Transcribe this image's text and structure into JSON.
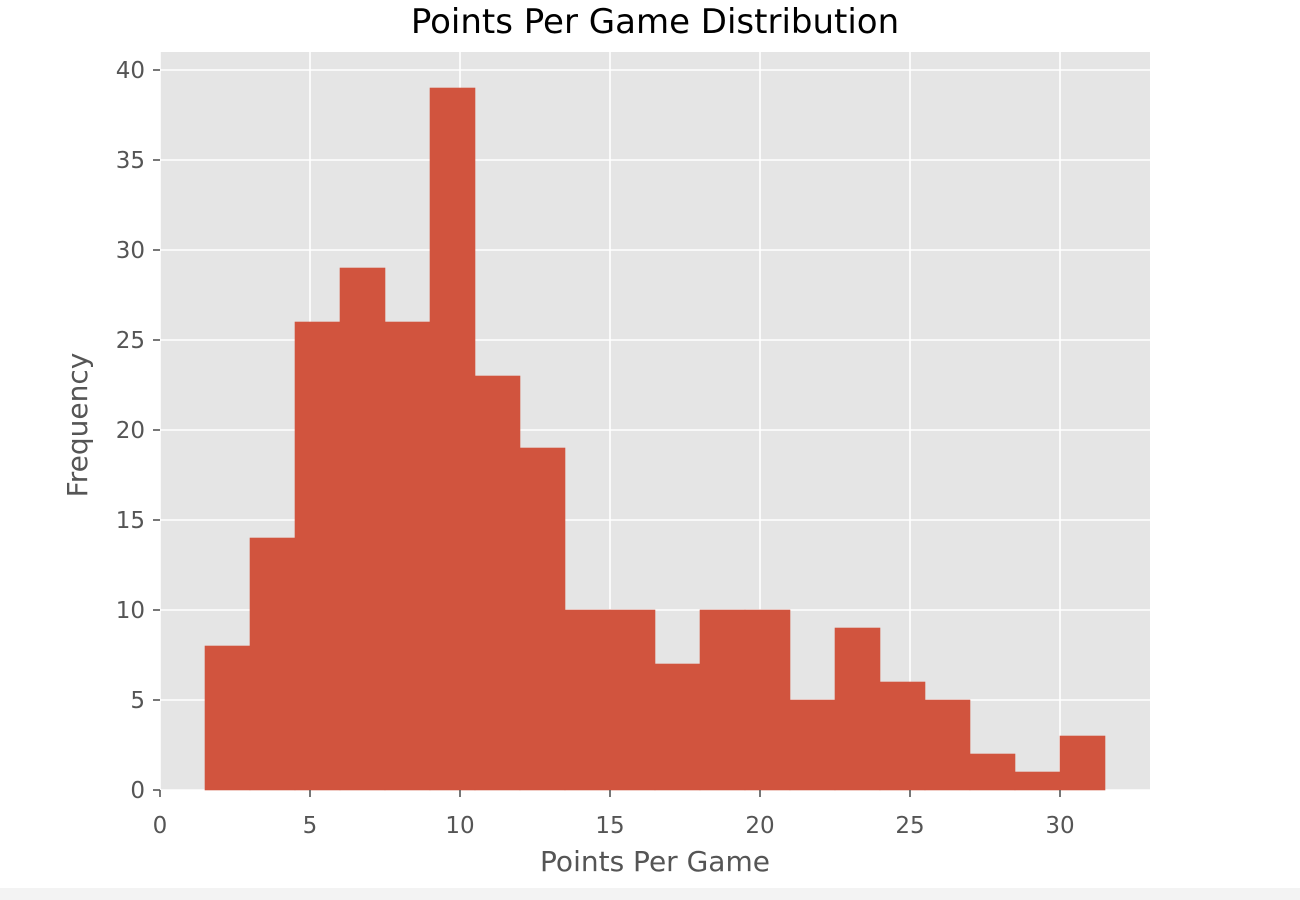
{
  "chart_data": {
    "type": "bar",
    "title": "Points Per Game Distribution",
    "xlabel": "Points Per Game",
    "ylabel": "Frequency",
    "xlim": [
      0,
      33
    ],
    "ylim": [
      0,
      41
    ],
    "grid": true,
    "bar_color": "#d1543e",
    "background_color": "#e5e5e5",
    "grid_color": "#ffffff",
    "x_ticks": [
      0,
      5,
      10,
      15,
      20,
      25,
      30
    ],
    "y_ticks": [
      0,
      5,
      10,
      15,
      20,
      25,
      30,
      35,
      40
    ],
    "bins": [
      {
        "x0": 1.5,
        "x1": 3.0,
        "value": 8
      },
      {
        "x0": 3.0,
        "x1": 4.5,
        "value": 14
      },
      {
        "x0": 4.5,
        "x1": 6.0,
        "value": 26
      },
      {
        "x0": 6.0,
        "x1": 7.5,
        "value": 29
      },
      {
        "x0": 7.5,
        "x1": 9.0,
        "value": 26
      },
      {
        "x0": 9.0,
        "x1": 10.5,
        "value": 39
      },
      {
        "x0": 10.5,
        "x1": 12.0,
        "value": 23
      },
      {
        "x0": 12.0,
        "x1": 13.5,
        "value": 19
      },
      {
        "x0": 13.5,
        "x1": 15.0,
        "value": 10
      },
      {
        "x0": 15.0,
        "x1": 16.5,
        "value": 10
      },
      {
        "x0": 16.5,
        "x1": 18.0,
        "value": 7
      },
      {
        "x0": 18.0,
        "x1": 19.5,
        "value": 10
      },
      {
        "x0": 19.5,
        "x1": 21.0,
        "value": 10
      },
      {
        "x0": 21.0,
        "x1": 22.5,
        "value": 5
      },
      {
        "x0": 22.5,
        "x1": 24.0,
        "value": 9
      },
      {
        "x0": 24.0,
        "x1": 25.5,
        "value": 6
      },
      {
        "x0": 25.5,
        "x1": 27.0,
        "value": 5
      },
      {
        "x0": 27.0,
        "x1": 28.5,
        "value": 2
      },
      {
        "x0": 28.5,
        "x1": 30.0,
        "value": 1
      },
      {
        "x0": 30.0,
        "x1": 31.5,
        "value": 3
      }
    ]
  }
}
